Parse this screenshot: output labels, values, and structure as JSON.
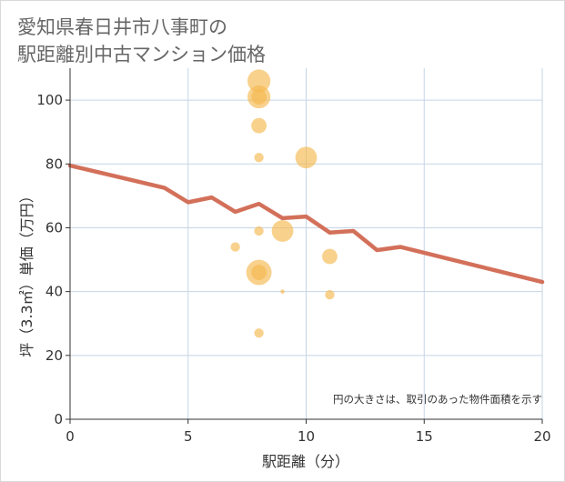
{
  "title_line1": "愛知県春日井市八事町の",
  "title_line2": "駅距離別中古マンション価格",
  "chart_data": {
    "type": "scatter",
    "xlabel": "駅距離（分）",
    "ylabel": "坪（3.3㎡）単価（万円）",
    "xlim": [
      0,
      20
    ],
    "ylim": [
      0,
      110
    ],
    "xticks": [
      0,
      5,
      10,
      15,
      20
    ],
    "yticks": [
      0,
      20,
      40,
      60,
      80,
      100
    ],
    "grid": true,
    "note": "円の大きさは、取引のあった物件面積を示す",
    "colors": {
      "bubble": "#f5b94f",
      "trend": "#d3705a",
      "grid": "#c5d5e5",
      "axis": "#333333"
    },
    "bubbles": [
      {
        "x": 8,
        "y": 106,
        "size": 9
      },
      {
        "x": 8,
        "y": 101,
        "size": 9
      },
      {
        "x": 8,
        "y": 101,
        "size": 4
      },
      {
        "x": 8,
        "y": 92,
        "size": 4
      },
      {
        "x": 8,
        "y": 82,
        "size": 1.5
      },
      {
        "x": 10,
        "y": 82,
        "size": 8
      },
      {
        "x": 8,
        "y": 59,
        "size": 1.5
      },
      {
        "x": 9,
        "y": 59,
        "size": 8
      },
      {
        "x": 7,
        "y": 54,
        "size": 1.5
      },
      {
        "x": 11,
        "y": 51,
        "size": 4
      },
      {
        "x": 8,
        "y": 46,
        "size": 11
      },
      {
        "x": 8,
        "y": 46,
        "size": 4
      },
      {
        "x": 9,
        "y": 40,
        "size": 0.3
      },
      {
        "x": 11,
        "y": 39,
        "size": 1.5
      },
      {
        "x": 8,
        "y": 27,
        "size": 1.5
      }
    ],
    "trend": {
      "x": [
        0,
        4,
        5,
        6,
        7,
        8,
        9,
        10,
        11,
        12,
        13,
        14,
        20
      ],
      "y": [
        79.5,
        72.5,
        68,
        69.5,
        65,
        67.5,
        63,
        63.5,
        58.5,
        59,
        53,
        54,
        43
      ]
    }
  }
}
